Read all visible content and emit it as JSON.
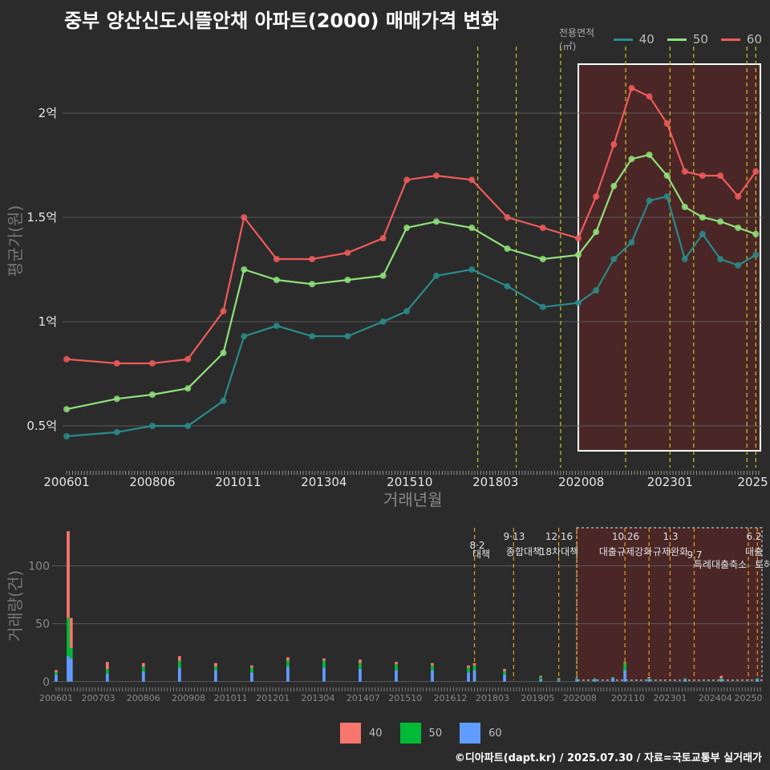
{
  "title": "중부 양산신도시뜰안채 아파트(2000) 매매가격 변화",
  "caption": "©디아파트(dapt.kr) / 2025.07.30 / 자료=국토교통부 실거래가",
  "colors": {
    "s40": "#f8766d",
    "s50": "#00ba38",
    "s60": "#619cff",
    "l40": "#2a8a8a",
    "l50": "#8fe07a",
    "l60": "#ef5a5a"
  },
  "chart_data": [
    {
      "type": "line",
      "legend_title": "전용면적(㎡)",
      "series": [
        {
          "name": "40",
          "x": [
            "2006-01",
            "2007-06",
            "2008-06",
            "2009-06",
            "2010-06",
            "2011-01",
            "2011-12",
            "2012-12",
            "2013-12",
            "2014-12",
            "2015-08",
            "2016-06",
            "2017-06",
            "2018-06",
            "2019-06",
            "2020-06",
            "2020-12",
            "2021-06",
            "2021-12",
            "2022-06",
            "2022-12",
            "2023-06",
            "2023-12",
            "2024-06",
            "2024-12",
            "2025-06"
          ],
          "values": [
            0.45,
            0.47,
            0.5,
            0.5,
            0.62,
            0.93,
            0.98,
            0.93,
            0.93,
            1.0,
            1.05,
            1.22,
            1.25,
            1.17,
            1.07,
            1.09,
            1.15,
            1.3,
            1.38,
            1.58,
            1.6,
            1.3,
            1.42,
            1.3,
            1.27,
            1.32
          ]
        },
        {
          "name": "50",
          "x": [
            "2006-01",
            "2007-06",
            "2008-06",
            "2009-06",
            "2010-06",
            "2011-01",
            "2011-12",
            "2012-12",
            "2013-12",
            "2014-12",
            "2015-08",
            "2016-06",
            "2017-06",
            "2018-06",
            "2019-06",
            "2020-06",
            "2020-12",
            "2021-06",
            "2021-12",
            "2022-06",
            "2022-12",
            "2023-06",
            "2023-12",
            "2024-06",
            "2024-12",
            "2025-06"
          ],
          "values": [
            0.58,
            0.63,
            0.65,
            0.68,
            0.85,
            1.25,
            1.2,
            1.18,
            1.2,
            1.22,
            1.45,
            1.48,
            1.45,
            1.35,
            1.3,
            1.32,
            1.43,
            1.65,
            1.78,
            1.8,
            1.7,
            1.55,
            1.5,
            1.48,
            1.45,
            1.42
          ]
        },
        {
          "name": "60",
          "x": [
            "2006-01",
            "2007-06",
            "2008-06",
            "2009-06",
            "2010-06",
            "2011-01",
            "2011-12",
            "2012-12",
            "2013-12",
            "2014-12",
            "2015-08",
            "2016-06",
            "2017-06",
            "2018-06",
            "2019-06",
            "2020-06",
            "2020-12",
            "2021-06",
            "2021-12",
            "2022-06",
            "2022-12",
            "2023-06",
            "2023-12",
            "2024-06",
            "2024-12",
            "2025-06"
          ],
          "values": [
            0.82,
            0.8,
            0.8,
            0.82,
            1.05,
            1.5,
            1.3,
            1.3,
            1.33,
            1.4,
            1.68,
            1.7,
            1.68,
            1.5,
            1.45,
            1.4,
            1.6,
            1.85,
            2.12,
            2.08,
            1.95,
            1.72,
            1.7,
            1.7,
            1.6,
            1.72
          ]
        }
      ],
      "y_ticks": [
        "0.5억",
        "1억",
        "1.5억",
        "2억"
      ],
      "y_tick_values": [
        0.5,
        1.0,
        1.5,
        2.0
      ],
      "ylim": [
        0.3,
        2.35
      ],
      "x_ticks": [
        "200601",
        "200806",
        "201011",
        "201304",
        "201510",
        "201803",
        "202008",
        "202301",
        "2025"
      ],
      "xlabel": "거래년월",
      "ylabel": "평균가(원)",
      "policy_lines": [
        "2017-08",
        "2018-09",
        "2019-12",
        "2021-10",
        "2023-01",
        "2023-09",
        "2025-03",
        "2025-06"
      ],
      "highlight": [
        "2020-06",
        "2025-07"
      ]
    },
    {
      "type": "bar",
      "stacked": true,
      "series": [
        {
          "name": "40",
          "values": [
            2,
            75,
            26,
            6,
            3,
            4,
            3,
            2,
            3,
            2,
            3,
            2,
            2,
            2,
            2,
            2,
            1,
            1,
            0,
            0,
            0,
            1,
            1,
            0,
            2,
            0
          ]
        },
        {
          "name": "50",
          "values": [
            2,
            33,
            9,
            4,
            4,
            6,
            3,
            4,
            5,
            6,
            5,
            5,
            4,
            4,
            4,
            3,
            2,
            1,
            1,
            1,
            1,
            6,
            1,
            1,
            1,
            1
          ]
        },
        {
          "name": "60",
          "values": [
            6,
            22,
            20,
            7,
            9,
            12,
            10,
            8,
            13,
            12,
            11,
            10,
            10,
            8,
            10,
            6,
            2,
            1,
            2,
            2,
            3,
            10,
            2,
            2,
            2,
            2
          ]
        }
      ],
      "x": [
        "2006-01",
        "2006-05",
        "2006-06",
        "2007-06",
        "2008-06",
        "2009-06",
        "2010-06",
        "2011-06",
        "2012-06",
        "2013-06",
        "2014-06",
        "2015-06",
        "2016-06",
        "2017-06",
        "2017-08",
        "2018-06",
        "2019-06",
        "2019-12",
        "2020-06",
        "2020-12",
        "2021-06",
        "2021-10",
        "2022-06",
        "2023-06",
        "2024-06",
        "2025-06"
      ],
      "y_ticks": [
        "0",
        "50",
        "100"
      ],
      "y_tick_values": [
        0,
        50,
        100
      ],
      "ylim": [
        -5,
        135
      ],
      "x_ticks": [
        "200601",
        "200703",
        "200806",
        "200908",
        "201011",
        "201201",
        "201304",
        "201407",
        "201510",
        "201612",
        "201803",
        "201905",
        "202008",
        "202110",
        "202301",
        "202404",
        "20250"
      ],
      "ylabel": "거래량(건)",
      "annotations": [
        {
          "date": "8·2",
          "label": "대책"
        },
        {
          "date": "9·13",
          "label": "종합대책"
        },
        {
          "date": "12·16",
          "label": "18차대책"
        },
        {
          "date": "10.26",
          "label": "대출규제강화"
        },
        {
          "date": "1.3",
          "label": "규제완화"
        },
        {
          "date": "9.7",
          "label": "특례대출축소"
        },
        {
          "date": "",
          "label": "토허제 해"
        },
        {
          "date": "6.2",
          "label": "대출"
        }
      ],
      "legend": [
        "40",
        "50",
        "60"
      ]
    }
  ]
}
